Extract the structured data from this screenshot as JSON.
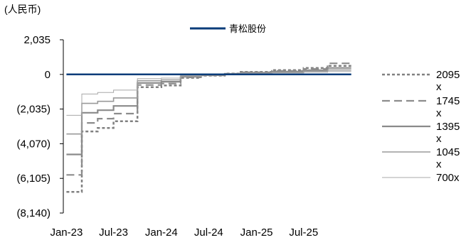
{
  "chart_data": {
    "type": "line",
    "unit_label": "(人民币)",
    "title": "",
    "xlabel": "",
    "ylabel": "",
    "ylim": [
      -8140,
      2035
    ],
    "y_ticks": [
      2035,
      0,
      -2035,
      -4070,
      -6105,
      -8140
    ],
    "y_tick_labels": [
      "2,035",
      "0",
      "(2,035)",
      "(4,070)",
      "(6,105)",
      "(8,140)"
    ],
    "x_ticks": [
      "2023-01",
      "2023-07",
      "2024-01",
      "2024-07",
      "2025-01",
      "2025-07"
    ],
    "x_tick_labels": [
      "Jan-23",
      "Jul-23",
      "Jan-24",
      "Jul-24",
      "Jan-25",
      "Jul-25"
    ],
    "x_range": [
      "2022-12-20",
      "2026-01-31"
    ],
    "grid": false,
    "series": [
      {
        "name": "青松股份",
        "color": "#0b3d7a",
        "dash": "solid",
        "width": 2.5,
        "legend": "top",
        "points": [
          [
            "2023-01-01",
            0
          ],
          [
            "2025-12-31",
            0
          ]
        ]
      },
      {
        "name": "2095x",
        "color": "#808080",
        "dash": "dot",
        "width": 2.5,
        "legend": "right",
        "points": [
          [
            "2023-01-01",
            -6900
          ],
          [
            "2023-03-01",
            -6900
          ],
          [
            "2023-03-01",
            -3350
          ],
          [
            "2023-05-01",
            -3350
          ],
          [
            "2023-05-01",
            -3150
          ],
          [
            "2023-07-01",
            -3150
          ],
          [
            "2023-07-01",
            -2750
          ],
          [
            "2023-10-01",
            -2750
          ],
          [
            "2023-10-01",
            -750
          ],
          [
            "2024-01-01",
            -750
          ],
          [
            "2024-01-01",
            -650
          ],
          [
            "2024-03-15",
            -650
          ],
          [
            "2024-03-15",
            -200
          ],
          [
            "2024-06-01",
            -200
          ],
          [
            "2024-06-01",
            -70
          ],
          [
            "2024-09-01",
            -70
          ],
          [
            "2024-09-01",
            50
          ],
          [
            "2024-11-01",
            50
          ],
          [
            "2024-11-01",
            150
          ],
          [
            "2025-03-01",
            150
          ],
          [
            "2025-03-01",
            250
          ],
          [
            "2025-07-01",
            250
          ],
          [
            "2025-07-01",
            380
          ],
          [
            "2025-10-01",
            380
          ],
          [
            "2025-10-01",
            500
          ],
          [
            "2025-12-31",
            500
          ]
        ]
      },
      {
        "name": "1745x",
        "color": "#8c8c8c",
        "dash": "dash",
        "width": 2.2,
        "legend": "right",
        "points": [
          [
            "2023-01-01",
            -5900
          ],
          [
            "2023-03-01",
            -5900
          ],
          [
            "2023-03-01",
            -2850
          ],
          [
            "2023-05-01",
            -2850
          ],
          [
            "2023-05-01",
            -2600
          ],
          [
            "2023-07-01",
            -2600
          ],
          [
            "2023-07-01",
            -2300
          ],
          [
            "2023-10-01",
            -2300
          ],
          [
            "2023-10-01",
            -620
          ],
          [
            "2024-01-01",
            -620
          ],
          [
            "2024-01-01",
            -540
          ],
          [
            "2024-03-15",
            -540
          ],
          [
            "2024-03-15",
            -170
          ],
          [
            "2024-06-01",
            -170
          ],
          [
            "2024-06-01",
            -55
          ],
          [
            "2024-09-01",
            -55
          ],
          [
            "2024-09-01",
            40
          ],
          [
            "2024-11-01",
            40
          ],
          [
            "2024-11-01",
            120
          ],
          [
            "2025-03-01",
            120
          ],
          [
            "2025-03-01",
            210
          ],
          [
            "2025-07-01",
            210
          ],
          [
            "2025-07-01",
            320
          ],
          [
            "2025-10-01",
            320
          ],
          [
            "2025-10-01",
            650
          ],
          [
            "2025-12-31",
            650
          ]
        ]
      },
      {
        "name": "1395x",
        "color": "#8a8a8a",
        "dash": "solid",
        "width": 2.2,
        "legend": "right",
        "points": [
          [
            "2023-01-01",
            -4700
          ],
          [
            "2023-03-01",
            -4700
          ],
          [
            "2023-03-01",
            -2250
          ],
          [
            "2023-05-01",
            -2250
          ],
          [
            "2023-05-01",
            -2100
          ],
          [
            "2023-07-01",
            -2100
          ],
          [
            "2023-07-01",
            -1850
          ],
          [
            "2023-10-01",
            -1850
          ],
          [
            "2023-10-01",
            -500
          ],
          [
            "2024-01-01",
            -500
          ],
          [
            "2024-01-01",
            -430
          ],
          [
            "2024-03-15",
            -430
          ],
          [
            "2024-03-15",
            -135
          ],
          [
            "2024-06-01",
            -135
          ],
          [
            "2024-06-01",
            -45
          ],
          [
            "2024-09-01",
            -45
          ],
          [
            "2024-09-01",
            30
          ],
          [
            "2024-11-01",
            30
          ],
          [
            "2024-11-01",
            100
          ],
          [
            "2025-03-01",
            100
          ],
          [
            "2025-03-01",
            165
          ],
          [
            "2025-07-01",
            165
          ],
          [
            "2025-07-01",
            250
          ],
          [
            "2025-10-01",
            250
          ],
          [
            "2025-10-01",
            380
          ],
          [
            "2025-12-31",
            380
          ]
        ]
      },
      {
        "name": "1045x",
        "color": "#9a9a9a",
        "dash": "solid",
        "width": 1.6,
        "legend": "right",
        "points": [
          [
            "2023-01-01",
            -3500
          ],
          [
            "2023-03-01",
            -3500
          ],
          [
            "2023-03-01",
            -1700
          ],
          [
            "2023-05-01",
            -1700
          ],
          [
            "2023-05-01",
            -1580
          ],
          [
            "2023-07-01",
            -1580
          ],
          [
            "2023-07-01",
            -1380
          ],
          [
            "2023-10-01",
            -1380
          ],
          [
            "2023-10-01",
            -370
          ],
          [
            "2024-01-01",
            -370
          ],
          [
            "2024-01-01",
            -320
          ],
          [
            "2024-03-15",
            -320
          ],
          [
            "2024-03-15",
            -100
          ],
          [
            "2024-06-01",
            -100
          ],
          [
            "2024-06-01",
            -35
          ],
          [
            "2024-09-01",
            -35
          ],
          [
            "2024-09-01",
            25
          ],
          [
            "2024-11-01",
            25
          ],
          [
            "2024-11-01",
            75
          ],
          [
            "2025-03-01",
            75
          ],
          [
            "2025-03-01",
            125
          ],
          [
            "2025-07-01",
            125
          ],
          [
            "2025-07-01",
            190
          ],
          [
            "2025-10-01",
            190
          ],
          [
            "2025-10-01",
            260
          ],
          [
            "2025-12-31",
            260
          ]
        ]
      },
      {
        "name": "700x",
        "color": "#a8a8a8",
        "dash": "solid",
        "width": 1.0,
        "legend": "right",
        "points": [
          [
            "2023-01-01",
            -2400
          ],
          [
            "2023-03-01",
            -2400
          ],
          [
            "2023-03-01",
            -1150
          ],
          [
            "2023-05-01",
            -1150
          ],
          [
            "2023-05-01",
            -1060
          ],
          [
            "2023-07-01",
            -1060
          ],
          [
            "2023-07-01",
            -920
          ],
          [
            "2023-10-01",
            -920
          ],
          [
            "2023-10-01",
            -250
          ],
          [
            "2024-01-01",
            -250
          ],
          [
            "2024-01-01",
            -215
          ],
          [
            "2024-03-15",
            -215
          ],
          [
            "2024-03-15",
            -65
          ],
          [
            "2024-06-01",
            -65
          ],
          [
            "2024-06-01",
            -22
          ],
          [
            "2024-09-01",
            -22
          ],
          [
            "2024-09-01",
            18
          ],
          [
            "2024-11-01",
            18
          ],
          [
            "2024-11-01",
            50
          ],
          [
            "2025-03-01",
            50
          ],
          [
            "2025-03-01",
            85
          ],
          [
            "2025-07-01",
            85
          ],
          [
            "2025-07-01",
            130
          ],
          [
            "2025-10-01",
            130
          ],
          [
            "2025-10-01",
            170
          ],
          [
            "2025-12-31",
            170
          ]
        ]
      }
    ]
  }
}
